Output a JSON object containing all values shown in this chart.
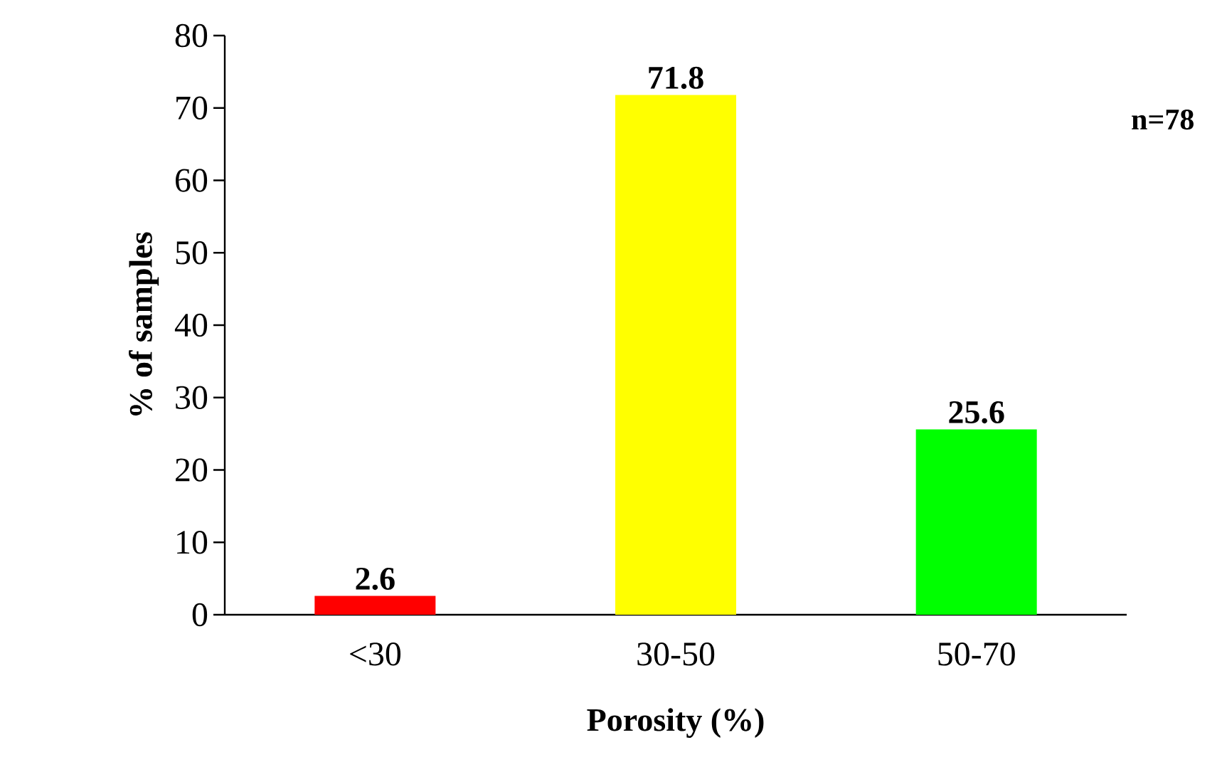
{
  "chart_data": {
    "type": "bar",
    "xlabel": "Porosity (%)",
    "ylabel": "% of samples",
    "categories": [
      "<30",
      "30-50",
      "50-70"
    ],
    "values": [
      2.6,
      71.8,
      25.6
    ],
    "colors": [
      "#ff0000",
      "#ffff00",
      "#00ff00"
    ],
    "ylim": [
      0,
      80
    ],
    "yticks": [
      0,
      10,
      20,
      30,
      40,
      50,
      60,
      70,
      80
    ],
    "data_labels": true,
    "annotations": [
      "n=78"
    ]
  }
}
